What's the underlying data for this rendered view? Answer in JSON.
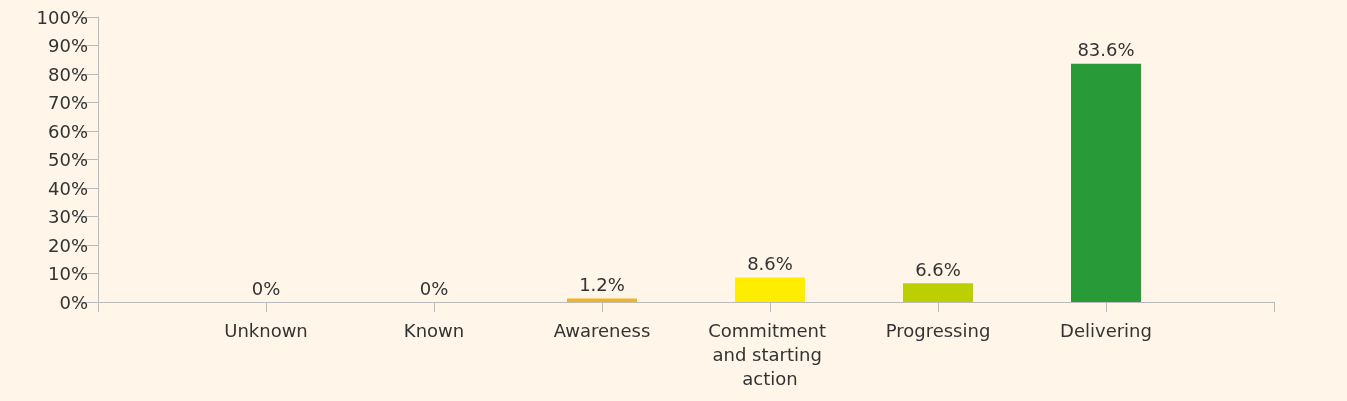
{
  "chart_data": {
    "type": "bar",
    "categories": [
      "Unknown",
      "Known",
      "Awareness",
      "Commitment and starting action",
      "Progressing",
      "Delivering"
    ],
    "values": [
      0,
      0,
      1.2,
      8.6,
      6.6,
      83.6
    ],
    "colors": [
      "#e4003b",
      "#f39200",
      "#f0b323",
      "#ffed00",
      "#bccf00",
      "#289a38"
    ],
    "value_labels": [
      "0%",
      "0%",
      "1.2%",
      "8.6%",
      "6.6%",
      "83.6%"
    ],
    "ylim": [
      0,
      100
    ],
    "yticks": [
      {
        "value": 0,
        "label": "0%"
      },
      {
        "value": 10,
        "label": "10%"
      },
      {
        "value": 20,
        "label": "20%"
      },
      {
        "value": 30,
        "label": "30%"
      },
      {
        "value": 40,
        "label": "40%"
      },
      {
        "value": 50,
        "label": "50%"
      },
      {
        "value": 60,
        "label": "60%"
      },
      {
        "value": 70,
        "label": "70%"
      },
      {
        "value": 80,
        "label": "80%"
      },
      {
        "value": 90,
        "label": "90%"
      },
      {
        "value": 100,
        "label": "100%"
      }
    ],
    "grid": false
  }
}
